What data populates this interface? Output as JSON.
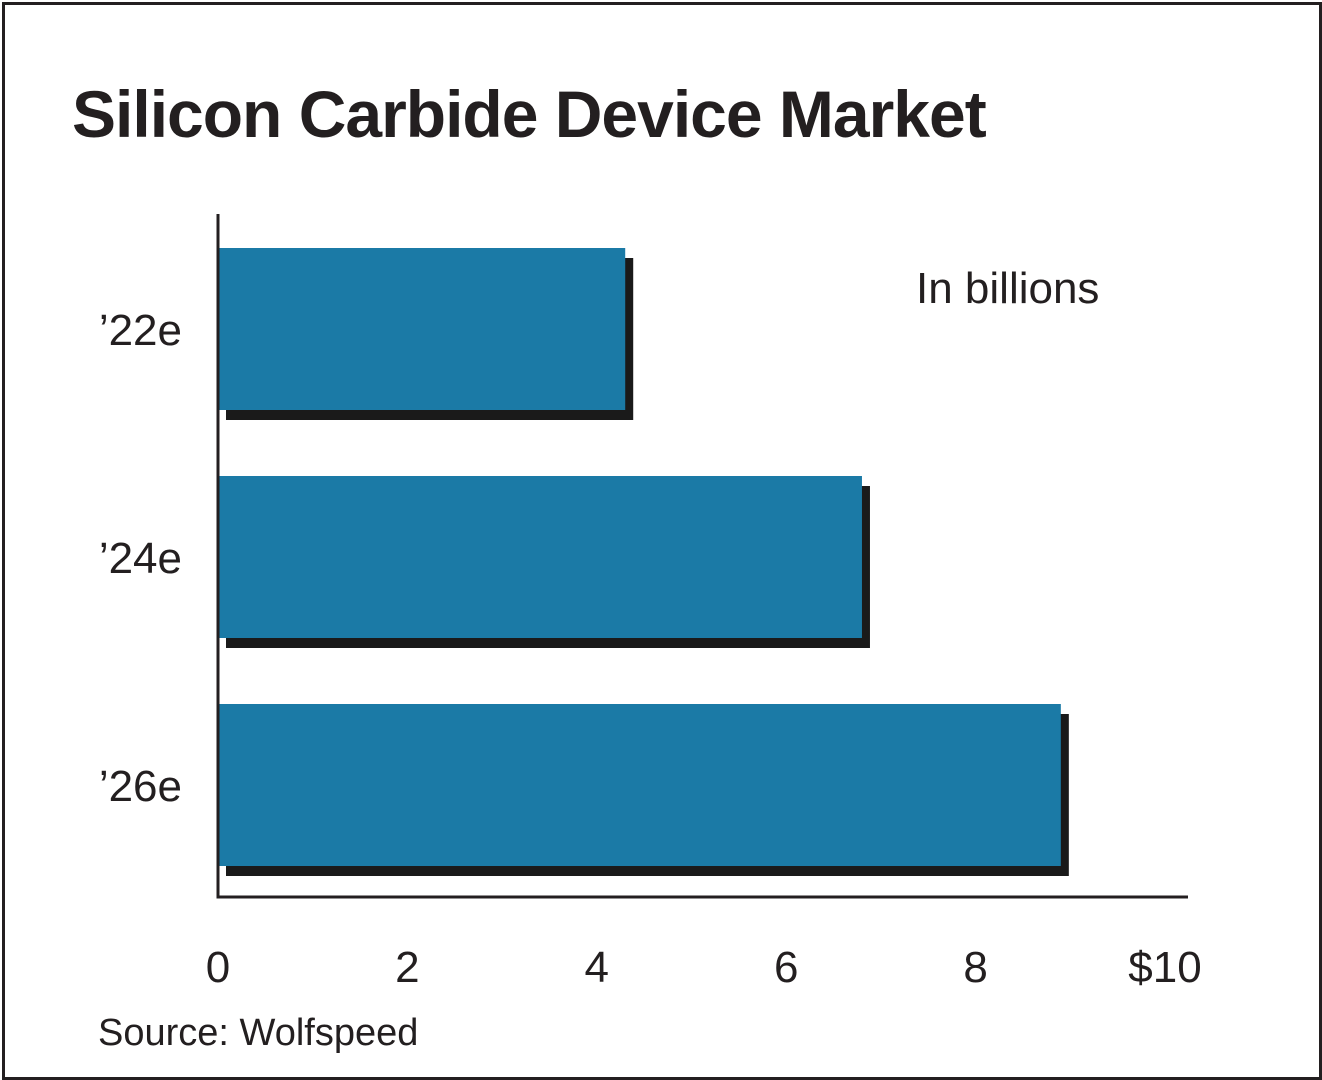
{
  "chart_data": {
    "type": "bar",
    "orientation": "horizontal",
    "title": "Silicon Carbide Device Market",
    "unit_note": "In billions",
    "source": "Source: Wolfspeed",
    "categories": [
      "’22e",
      "’24e",
      "’26e"
    ],
    "values": [
      4.3,
      6.8,
      8.9
    ],
    "xlim": [
      0,
      10
    ],
    "x_ticks": [
      0,
      2,
      4,
      6,
      8,
      10
    ],
    "x_tick_labels": [
      "0",
      "2",
      "4",
      "6",
      "8",
      "$10"
    ],
    "grid": false,
    "bar_color": "#1b7aa6",
    "shadow_color": "#1a1a1a"
  }
}
